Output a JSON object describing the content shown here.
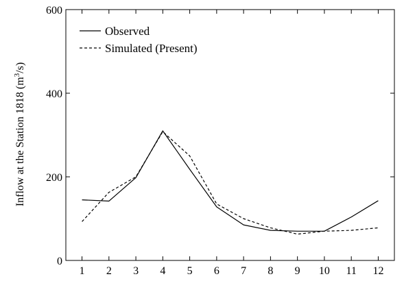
{
  "chart_data": {
    "type": "line",
    "title": "",
    "xlabel": "",
    "ylabel_main": "Inflow at the Station 1818 (m",
    "ylabel_sup": "3",
    "ylabel_tail": "/s)",
    "x": [
      1,
      2,
      3,
      4,
      5,
      6,
      7,
      8,
      9,
      10,
      11,
      12
    ],
    "x_tick_labels": [
      "1",
      "2",
      "3",
      "4",
      "5",
      "6",
      "7",
      "8",
      "9",
      "10",
      "11",
      "12"
    ],
    "y_tick_labels": [
      "0",
      "200",
      "400",
      "600"
    ],
    "y_ticks": [
      0,
      200,
      400,
      600
    ],
    "xlim": [
      0.4,
      12.6
    ],
    "ylim": [
      0,
      600
    ],
    "grid": false,
    "legend_position": "top-left",
    "series": [
      {
        "name": "Observed",
        "style": "solid",
        "values": [
          145,
          142,
          198,
          310,
          218,
          128,
          85,
          72,
          70,
          70,
          104,
          143
        ]
      },
      {
        "name": "Simulated (Present)",
        "style": "dashed",
        "values": [
          93,
          163,
          200,
          308,
          250,
          135,
          100,
          78,
          63,
          70,
          72,
          78
        ]
      }
    ]
  }
}
